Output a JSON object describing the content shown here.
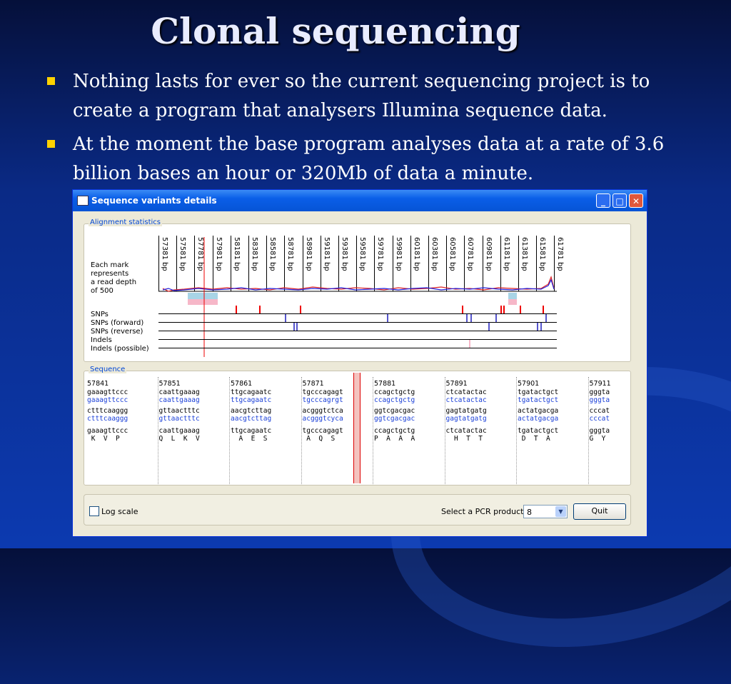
{
  "slide": {
    "title": "Clonal sequencing",
    "bullets": [
      "Nothing lasts for ever so the current sequencing project is to create a program that analysers Illumina sequence data.",
      "At the moment the base program analyses data at a rate of 3.6 billion bases an hour or 320Mb of data a minute."
    ]
  },
  "window": {
    "title": "Sequence variants details",
    "alignment": {
      "legend": "Alignment statistics",
      "depth_note": [
        "Each mark",
        "represents",
        "a read depth",
        "of 500"
      ],
      "positions": [
        "57381 bp",
        "57581 bp",
        "57781 bp",
        "57981 bp",
        "58181 bp",
        "58381 bp",
        "58581 bp",
        "58781 bp",
        "58981 bp",
        "59181 bp",
        "59381 bp",
        "59581 bp",
        "59781 bp",
        "59981 bp",
        "60181 bp",
        "60381 bp",
        "60581 bp",
        "60781 bp",
        "60981 bp",
        "61181 bp",
        "61381 bp",
        "61581 bp",
        "61781 bp"
      ],
      "tracks": [
        "SNPs",
        "SNPs (forward)",
        "SNPs (reverse)",
        "Indels",
        "Indels (possible)"
      ]
    },
    "sequence": {
      "legend": "Sequence",
      "blocks": [
        {
          "pos": "57841",
          "r1": "gaaagttccc",
          "r2": "gaaagttccc",
          "r3": "ctttcaaggg",
          "r4": "ctttcaaggg",
          "r5": "gaaagttccc",
          "aa": " K  V  P  "
        },
        {
          "pos": "57851",
          "r1": "caattgaaag",
          "r2": "caattgaaag",
          "r3": "gttaactttc",
          "r4": "gttaactttc",
          "r5": "caattgaaag",
          "aa": "Q  L  K  V"
        },
        {
          "pos": "57861",
          "r1": "ttgcagaatc",
          "r2": "ttgcagaatc",
          "r3": "aacgtcttag",
          "r4": "aacgtcttag",
          "r5": "ttgcagaatc",
          "aa": "  A  E  S "
        },
        {
          "pos": "57871",
          "r1": "tgcccagagt",
          "r2": "tgcccagrgt",
          "r3": "acgggtctca",
          "r4": "acgggtcyca",
          "r5": "tgcccagagt",
          "aa": " A  Q  S  "
        },
        {
          "pos": "57881",
          "r1": "ccagctgctg",
          "r2": "ccagctgctg",
          "r3": "ggtcgacgac",
          "r4": "ggtcgacgac",
          "r5": "ccagctgctg",
          "aa": "P  A  A  A"
        },
        {
          "pos": "57891",
          "r1": "ctcatactac",
          "r2": "ctcatactac",
          "r3": "gagtatgatg",
          "r4": "gagtatgatg",
          "r5": "ctcatactac",
          "aa": "  H  T  T "
        },
        {
          "pos": "57901",
          "r1": "tgatactgct",
          "r2": "tgatactgct",
          "r3": "actatgacga",
          "r4": "actatgacga",
          "r5": "tgatactgct",
          "aa": " D  T  A  "
        },
        {
          "pos": "57911",
          "r1": "gggta",
          "r2": "gggta",
          "r3": "cccat",
          "r4": "cccat",
          "r5": "gggta",
          "aa": "G  Y"
        }
      ]
    },
    "controls": {
      "log_scale": "Log scale",
      "pcr_label": "Select a PCR product",
      "pcr_value": "8",
      "quit": "Quit"
    }
  }
}
